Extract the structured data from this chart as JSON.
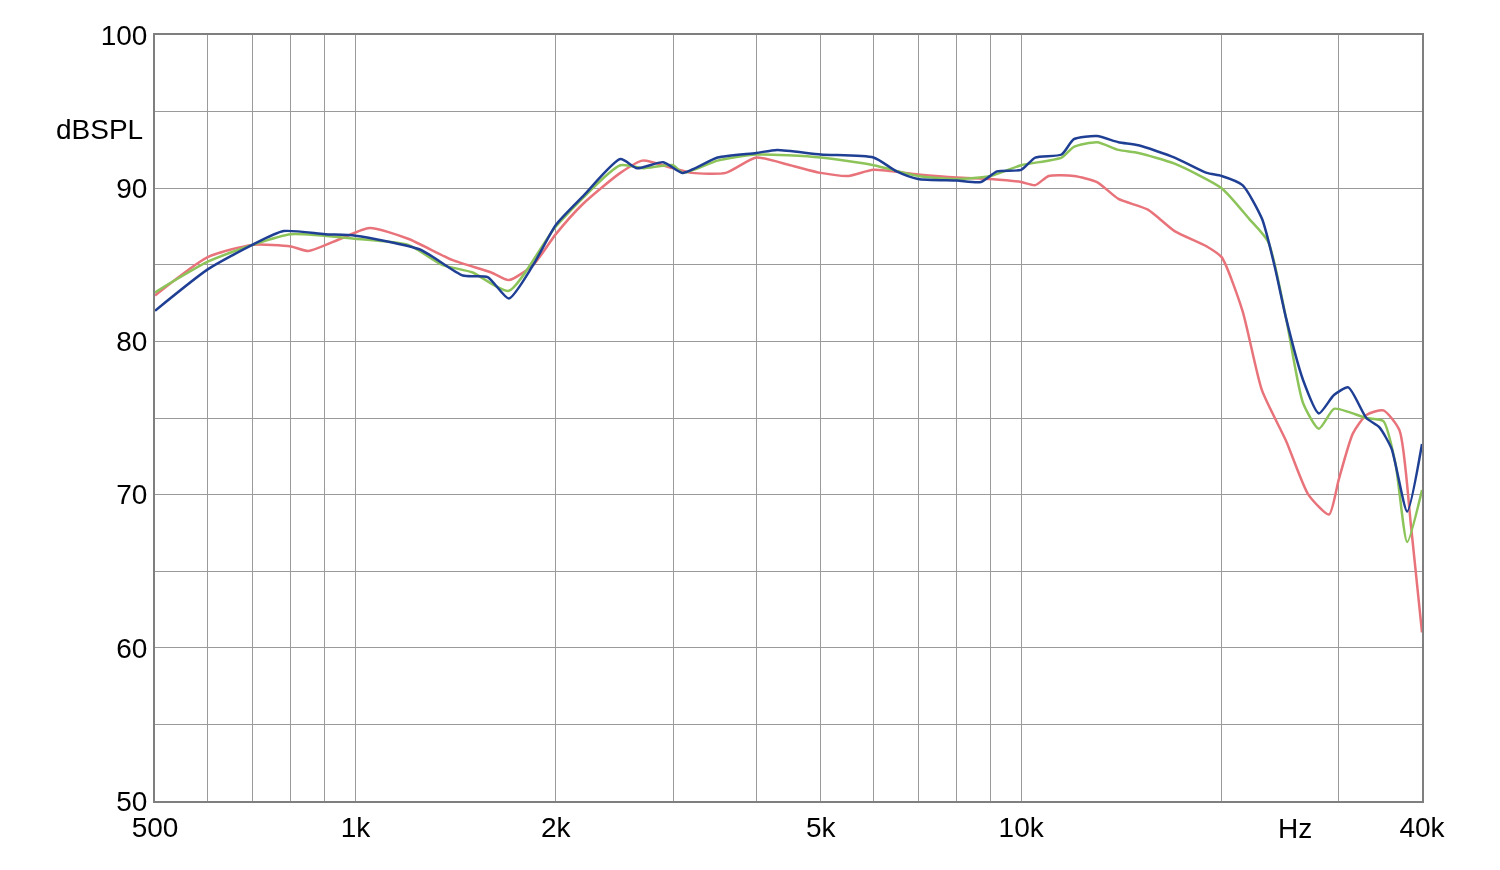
{
  "chart_data": {
    "type": "line",
    "xlabel": "Hz",
    "ylabel": "dBSPL",
    "log": "x",
    "grid": true,
    "line_style": "solid",
    "marker": "none",
    "xlim": [
      500,
      40000
    ],
    "xticks": [
      500,
      {
        "value": 600,
        "label": null
      },
      {
        "value": 700,
        "label": null
      },
      {
        "value": 800,
        "label": null
      },
      {
        "value": 900,
        "label": null
      },
      {
        "value": 1000,
        "label": "1k"
      },
      {
        "value": 2000,
        "label": "2k"
      },
      {
        "value": 3000,
        "label": null
      },
      {
        "value": 4000,
        "label": null
      },
      {
        "value": 5000,
        "label": "5k"
      },
      {
        "value": 6000,
        "label": null
      },
      {
        "value": 7000,
        "label": null
      },
      {
        "value": 8000,
        "label": null
      },
      {
        "value": 9000,
        "label": null
      },
      {
        "value": 10000,
        "label": "10k"
      },
      {
        "value": 20000,
        "label": null
      },
      {
        "value": 30000,
        "label": null
      },
      {
        "value": 40000,
        "label": "40k"
      }
    ],
    "ylim": [
      50,
      100
    ],
    "yticks": [
      50,
      {
        "value": 55,
        "label": null
      },
      60,
      {
        "value": 65,
        "label": null
      },
      70,
      {
        "value": 75,
        "label": null
      },
      80,
      {
        "value": 85,
        "label": null
      },
      90,
      {
        "value": 95,
        "label": null
      },
      100
    ],
    "series": [
      {
        "color": "#e8737a",
        "x": [
          500,
          600,
          700,
          800,
          850,
          950,
          1050,
          1200,
          1400,
          1600,
          1700,
          1850,
          2000,
          2200,
          2500,
          2700,
          3000,
          3200,
          3600,
          4000,
          4500,
          5000,
          5500,
          6000,
          7000,
          8000,
          9000,
          10000,
          10500,
          11000,
          12000,
          13000,
          14000,
          15500,
          17000,
          19000,
          20000,
          21500,
          23000,
          25000,
          27000,
          29000,
          30000,
          31500,
          33000,
          35000,
          37000,
          38500,
          40000
        ],
        "values": [
          83.0,
          85.5,
          86.3,
          86.2,
          85.9,
          86.7,
          87.4,
          86.7,
          85.3,
          84.5,
          84.0,
          85.0,
          87.0,
          89.0,
          91.0,
          91.8,
          91.3,
          91.0,
          91.0,
          92.0,
          91.5,
          91.0,
          90.8,
          91.2,
          90.9,
          90.7,
          90.6,
          90.4,
          90.2,
          90.8,
          90.8,
          90.4,
          89.3,
          88.6,
          87.2,
          86.2,
          85.5,
          82.0,
          76.8,
          73.5,
          70.0,
          68.7,
          71.0,
          74.0,
          75.2,
          75.5,
          74.2,
          68.0,
          61.0
        ]
      },
      {
        "color": "#8cc45a",
        "x": [
          500,
          600,
          700,
          800,
          1000,
          1200,
          1350,
          1500,
          1700,
          2000,
          2500,
          2700,
          3000,
          3100,
          3500,
          4000,
          5000,
          6000,
          7000,
          8000,
          9000,
          10000,
          11500,
          12000,
          13000,
          14000,
          15000,
          17000,
          20000,
          22000,
          23500,
          25000,
          26500,
          28000,
          29500,
          31000,
          33000,
          35000,
          36500,
          38000,
          40000
        ],
        "values": [
          83.2,
          85.2,
          86.3,
          87.0,
          86.7,
          86.3,
          85.0,
          84.5,
          83.3,
          87.5,
          91.5,
          91.3,
          91.5,
          91.0,
          91.8,
          92.2,
          92.0,
          91.5,
          90.8,
          90.6,
          90.8,
          91.5,
          92.0,
          92.7,
          93.0,
          92.5,
          92.3,
          91.6,
          90.0,
          88.0,
          86.5,
          81.5,
          76.0,
          74.3,
          75.6,
          75.4,
          75.0,
          74.8,
          72.0,
          66.9,
          70.3
        ]
      },
      {
        "color": "#1f3f94",
        "x": [
          500,
          600,
          700,
          780,
          900,
          1000,
          1250,
          1450,
          1580,
          1700,
          1850,
          2000,
          2200,
          2500,
          2650,
          2900,
          3100,
          3500,
          4000,
          4300,
          5000,
          6000,
          6500,
          7000,
          8000,
          8700,
          9200,
          10000,
          10500,
          11500,
          12000,
          13000,
          14000,
          15000,
          17000,
          19000,
          20000,
          21500,
          23000,
          24000,
          25000,
          26500,
          28000,
          29500,
          31000,
          33000,
          34500,
          36000,
          38000,
          40000
        ],
        "values": [
          82.0,
          84.7,
          86.3,
          87.2,
          87.0,
          86.9,
          86.0,
          84.3,
          84.2,
          82.8,
          85.0,
          87.6,
          89.5,
          91.9,
          91.3,
          91.7,
          91.0,
          92.0,
          92.3,
          92.5,
          92.2,
          92.0,
          91.1,
          90.6,
          90.5,
          90.4,
          91.1,
          91.2,
          92.0,
          92.2,
          93.2,
          93.4,
          93.0,
          92.8,
          92.0,
          91.0,
          90.8,
          90.2,
          88.0,
          85.0,
          81.5,
          77.5,
          75.3,
          76.5,
          77.0,
          75.0,
          74.4,
          73.0,
          68.9,
          73.3
        ]
      }
    ]
  }
}
